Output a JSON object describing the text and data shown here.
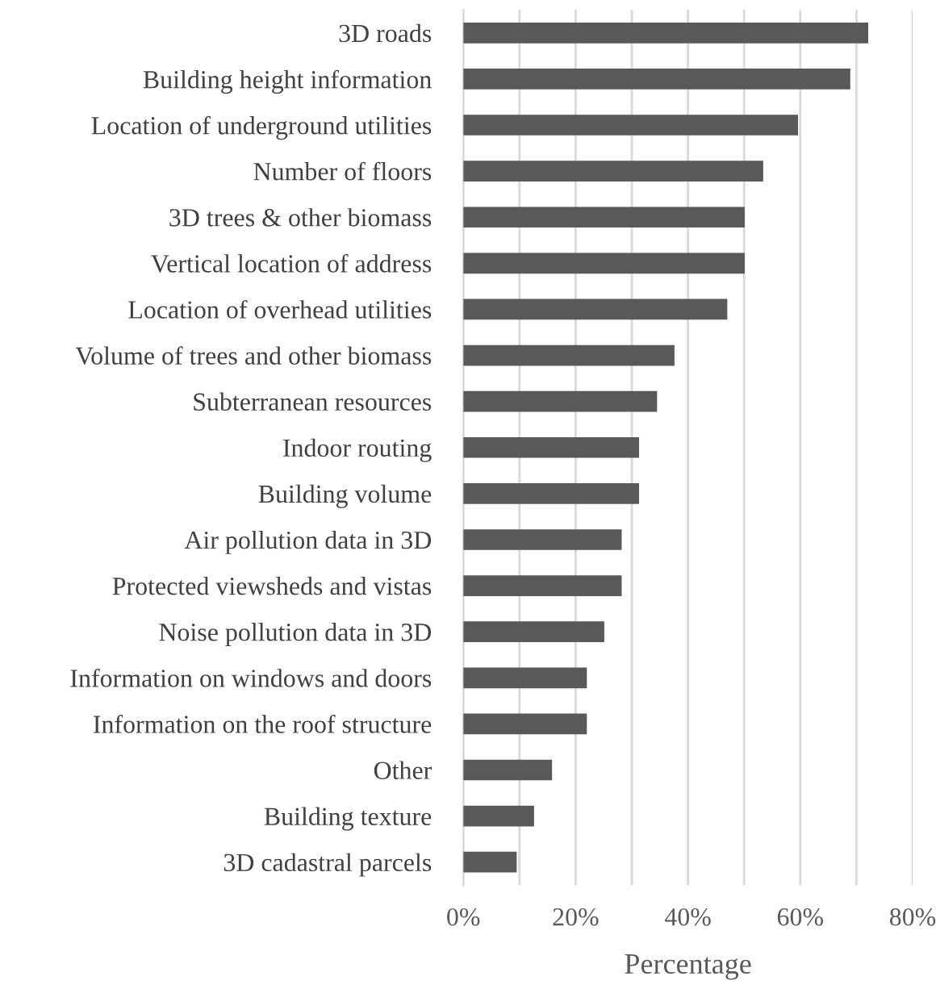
{
  "chart_data": {
    "type": "bar",
    "orientation": "horizontal",
    "xlabel": "Percentage",
    "categories": [
      "3D roads",
      "Building height information",
      "Location of underground utilities",
      "Number of floors",
      "3D trees & other biomass",
      "Vertical location of address",
      "Location of overhead utilities",
      "Volume of trees and other biomass",
      "Subterranean resources",
      "Indoor routing",
      "Building volume",
      "Air pollution data in 3D",
      "Protected viewsheds and vistas",
      "Noise pollution data in 3D",
      "Information on windows and doors",
      "Information on the roof structure",
      "Other",
      "Building texture",
      "3D cadastral parcels"
    ],
    "values": [
      72.1,
      68.9,
      59.6,
      53.4,
      50.1,
      50.1,
      47.0,
      37.6,
      34.5,
      31.3,
      31.3,
      28.2,
      28.2,
      25.1,
      22.0,
      22.0,
      15.8,
      12.6,
      9.5
    ],
    "color": "#595959",
    "xlim": [
      0,
      80
    ],
    "xticks": [
      {
        "value": 0,
        "label": "0%"
      },
      {
        "value": 10,
        "label": null
      },
      {
        "value": 20,
        "label": "20%"
      },
      {
        "value": 30,
        "label": null
      },
      {
        "value": 40,
        "label": "40%"
      },
      {
        "value": 50,
        "label": null
      },
      {
        "value": 60,
        "label": "60%"
      },
      {
        "value": 70,
        "label": null
      },
      {
        "value": 80,
        "label": "80%"
      }
    ],
    "grid": "x"
  }
}
